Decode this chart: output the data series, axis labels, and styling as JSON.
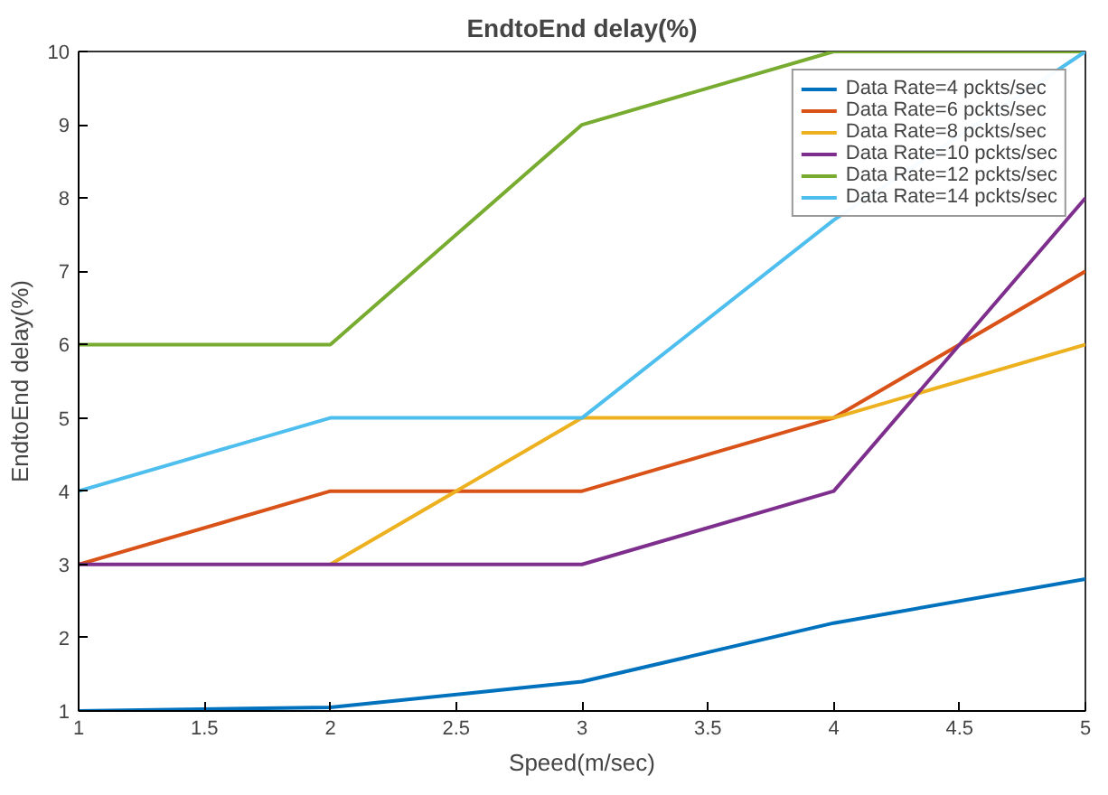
{
  "chart_data": {
    "type": "line",
    "title": "EndtoEnd delay(%)",
    "xlabel": "Speed(m/sec)",
    "ylabel": "EndtoEnd delay(%)",
    "x": [
      1,
      2,
      3,
      4,
      5
    ],
    "xlim": [
      1,
      5
    ],
    "xticks": [
      1,
      1.5,
      2,
      2.5,
      3,
      3.5,
      4,
      4.5,
      5
    ],
    "ylim": [
      1,
      10
    ],
    "yticks": [
      1,
      2,
      3,
      4,
      5,
      6,
      7,
      8,
      9,
      10
    ],
    "grid": false,
    "legend": "top right",
    "line_style": "solid",
    "series": [
      {
        "name": "Data Rate=4 pckts/sec",
        "color": "#0072bd",
        "values": [
          1,
          1.05,
          1.4,
          2.2,
          2.8
        ]
      },
      {
        "name": "Data Rate=6 pckts/sec",
        "color": "#d95319",
        "values": [
          3,
          4,
          4,
          5,
          7
        ]
      },
      {
        "name": "Data Rate=8 pckts/sec",
        "color": "#edb120",
        "values": [
          null,
          3,
          5,
          5,
          6
        ]
      },
      {
        "name": "Data Rate=10 pckts/sec",
        "color": "#7e2f8e",
        "values": [
          3,
          3,
          3,
          4,
          8
        ]
      },
      {
        "name": "Data Rate=12 pckts/sec",
        "color": "#77ac30",
        "values": [
          6,
          6,
          9,
          10,
          10
        ]
      },
      {
        "name": "Data Rate=14 pckts/sec",
        "color": "#4dbeee",
        "values": [
          4,
          5,
          5,
          7.7,
          10
        ]
      }
    ]
  }
}
